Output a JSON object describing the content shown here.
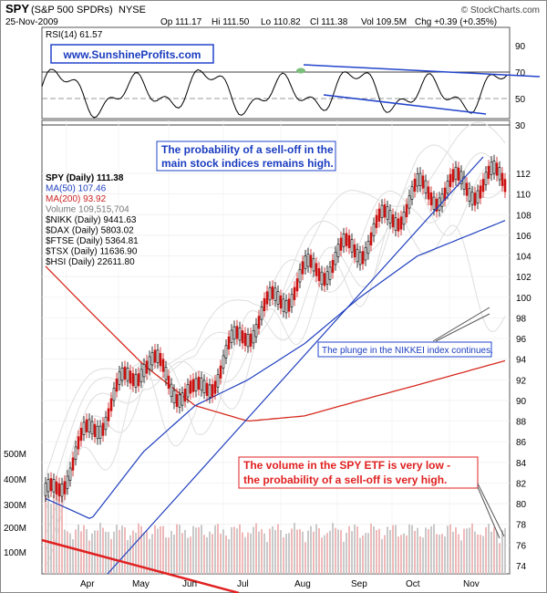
{
  "header": {
    "symbol": "SPY",
    "name": "(S&P 500 SPDRs)",
    "exchange": "NYSE",
    "copyright": "© StockCharts.com",
    "date": "25-Nov-2009",
    "quote": {
      "open": "Op 111.17",
      "high": "Hi 111.50",
      "low": "Lo 110.82",
      "close": "Cl 111.38",
      "volume": "Vol 109.5M",
      "change": "Chg +0.39 (+0.35%)"
    }
  },
  "rsi_panel": {
    "label": "RSI(14) 61.57",
    "watermark": "www.SunshineProfits.com",
    "ticks": [
      "90",
      "70",
      "50",
      "30"
    ]
  },
  "main_panel": {
    "legend": [
      {
        "text": "SPY (Daily) 111.38",
        "color": "#000000",
        "bold": true
      },
      {
        "text": "MA(50) 107.46",
        "color": "#1f3fbf",
        "bold": false
      },
      {
        "text": "MA(200) 93.92",
        "color": "#cc2222",
        "bold": false
      },
      {
        "text": "Volume 109,515,704",
        "color": "#777777",
        "bold": false
      },
      {
        "text": "$NIKK (Daily) 9441.63",
        "color": "#000000",
        "bold": false
      },
      {
        "text": "$DAX (Daily) 5803.02",
        "color": "#000000",
        "bold": false
      },
      {
        "text": "$FTSE (Daily) 5364.81",
        "color": "#000000",
        "bold": false
      },
      {
        "text": "$TSX (Daily) 11636.90",
        "color": "#000000",
        "bold": false
      },
      {
        "text": "$HSI (Daily) 22611.80",
        "color": "#000000",
        "bold": false
      }
    ],
    "annotation_top": [
      "The probability of a sell-off in the",
      "main stock indices remains high."
    ],
    "annotation_nikkei": "The plunge in the NIKKEI index continues.",
    "annotation_volume": [
      "The volume in the SPY ETF is very low -",
      "the probability of a sell-off is very high."
    ]
  },
  "chart_data": {
    "type": "line",
    "title": "SPY (S&P 500 SPDRs) NYSE",
    "price_axis": [
      112,
      110,
      108,
      106,
      104,
      102,
      100,
      98,
      96,
      94,
      92,
      90,
      88,
      86,
      84,
      82,
      80,
      78,
      76,
      74
    ],
    "volume_axis": [
      "500M",
      "400M",
      "300M",
      "200M",
      "100M"
    ],
    "x_months": [
      "Apr",
      "May",
      "Jun",
      "Jul",
      "Aug",
      "Sep",
      "Oct",
      "Nov"
    ],
    "series": [
      {
        "name": "SPY (Daily)",
        "values_by_month": [
          80,
          87,
          94,
          90,
          97,
          102,
          105,
          110,
          111.4
        ]
      },
      {
        "name": "MA(50)",
        "values_by_month": [
          80.5,
          78.5,
          85,
          89.5,
          92,
          95.5,
          100,
          104,
          107.5
        ]
      },
      {
        "name": "MA(200)",
        "values_by_month": [
          103,
          98.5,
          93.5,
          89.5,
          88,
          88.5,
          90,
          91.5,
          93.9
        ]
      }
    ],
    "rsi_range": [
      30,
      90
    ]
  }
}
